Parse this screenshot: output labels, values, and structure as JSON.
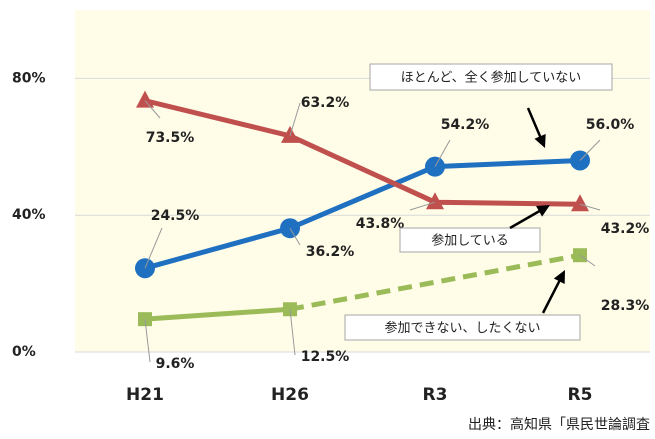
{
  "chart_data": {
    "type": "line",
    "categories": [
      "H21",
      "H26",
      "R3",
      "R5"
    ],
    "series": [
      {
        "name": "ほとんど、全く参加していない",
        "color": "#1f70c1",
        "marker": "circle",
        "values": [
          24.5,
          36.2,
          54.2,
          56.0
        ],
        "value_labels": [
          "24.5%",
          "36.2%",
          "54.2%",
          "56.0%"
        ]
      },
      {
        "name": "参加している",
        "color": "#c0504d",
        "marker": "triangle",
        "values": [
          73.5,
          63.2,
          43.8,
          43.2
        ],
        "value_labels": [
          "73.5%",
          "63.2%",
          "43.8%",
          "43.2%"
        ]
      },
      {
        "name": "参加できない、したくない",
        "color": "#9bbb59",
        "marker": "square",
        "gap_line": "dashed",
        "values": [
          9.6,
          12.5,
          null,
          28.3
        ],
        "value_labels": [
          "9.6%",
          "12.5%",
          null,
          "28.3%"
        ]
      }
    ],
    "ylim": [
      0,
      100
    ],
    "yticks": [
      {
        "value": 0,
        "label": "0%"
      },
      {
        "value": 40,
        "label": "40%"
      },
      {
        "value": 80,
        "label": "80%"
      }
    ],
    "grid": true,
    "source": "出典：高知県「県民世論調査"
  }
}
